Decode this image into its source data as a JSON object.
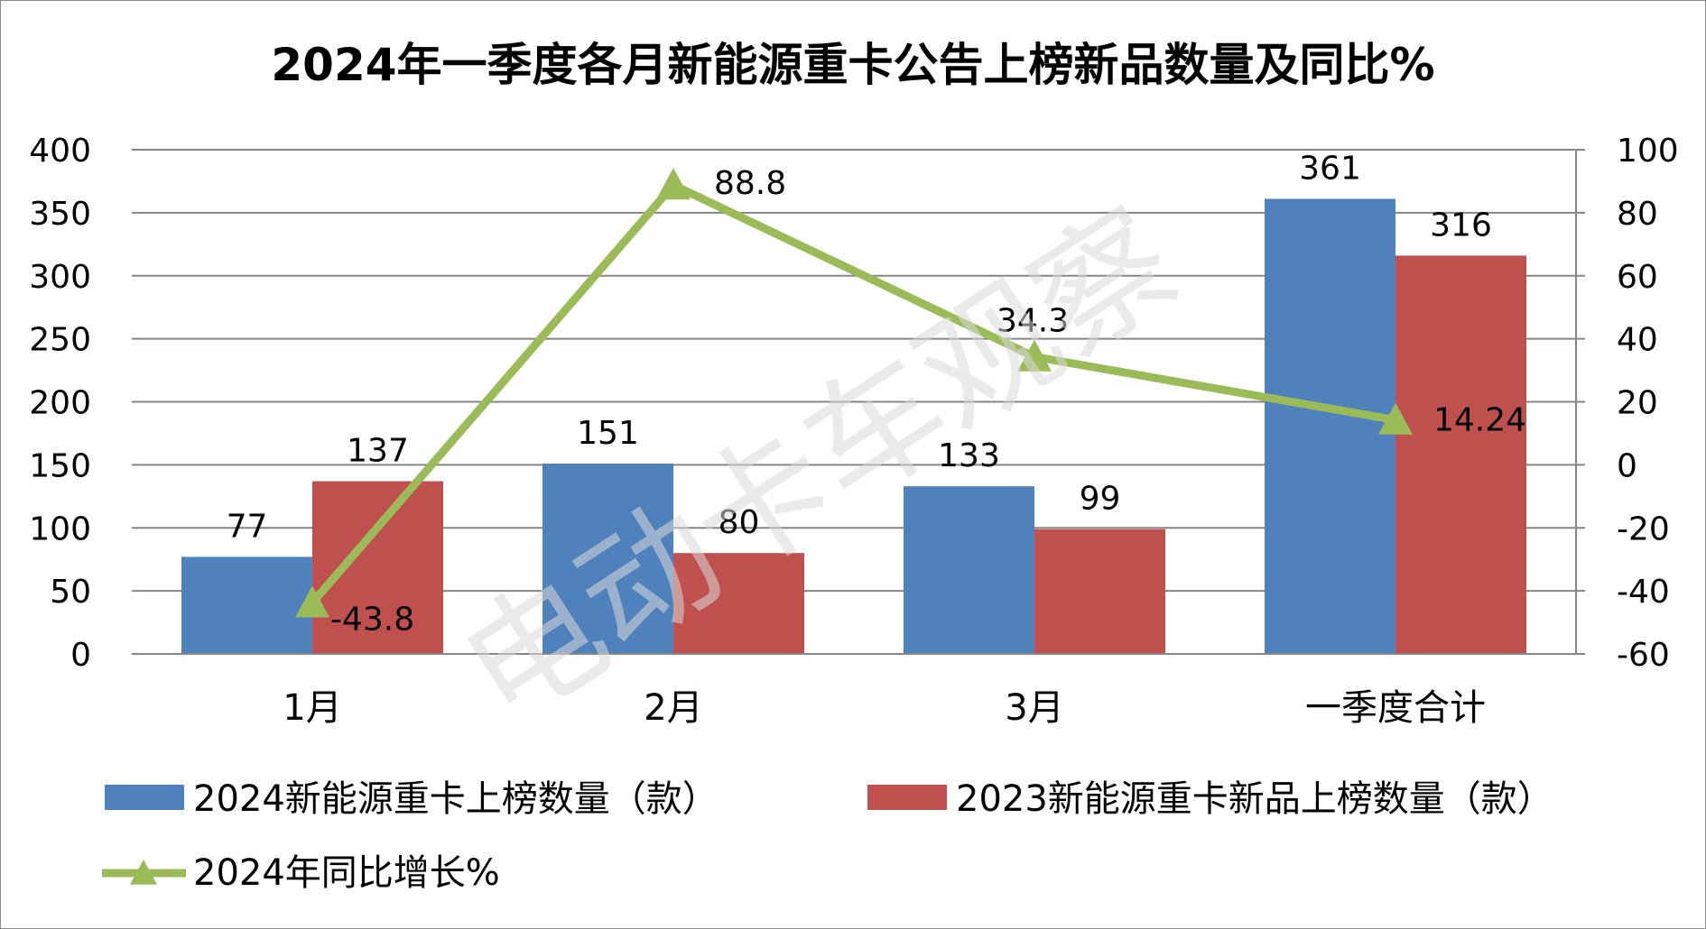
{
  "chart_data": {
    "type": "bar",
    "title": "2024年一季度各月新能源重卡公告上榜新品数量及同比%",
    "categories": [
      "1月",
      "2月",
      "3月",
      "一季度合计"
    ],
    "series": [
      {
        "name": "2024新能源重卡上榜数量（款）",
        "type": "bar",
        "axis": "left",
        "color": "#4f81bd",
        "values": [
          77,
          151,
          133,
          361
        ]
      },
      {
        "name": "2023新能源重卡新品上榜数量（款）",
        "type": "bar",
        "axis": "left",
        "color": "#c0504d",
        "values": [
          137,
          80,
          99,
          316
        ]
      },
      {
        "name": "2024年同比增长%",
        "type": "line",
        "axis": "right",
        "color": "#9bbb59",
        "marker": "triangle",
        "values": [
          -43.8,
          88.8,
          34.3,
          14.24
        ],
        "labels": [
          "-43.8",
          "88.8",
          "34.3",
          "14.24"
        ]
      }
    ],
    "y_left": {
      "min": 0,
      "max": 400,
      "step": 50,
      "ticks": [
        "0",
        "50",
        "100",
        "150",
        "200",
        "250",
        "300",
        "350",
        "400"
      ]
    },
    "y_right": {
      "min": -60,
      "max": 100,
      "step": 20,
      "ticks": [
        "-60",
        "-40",
        "-20",
        "0",
        "20",
        "40",
        "60",
        "80",
        "100"
      ]
    },
    "grid": true,
    "legend_position": "bottom",
    "watermark": "电动卡车观察"
  }
}
